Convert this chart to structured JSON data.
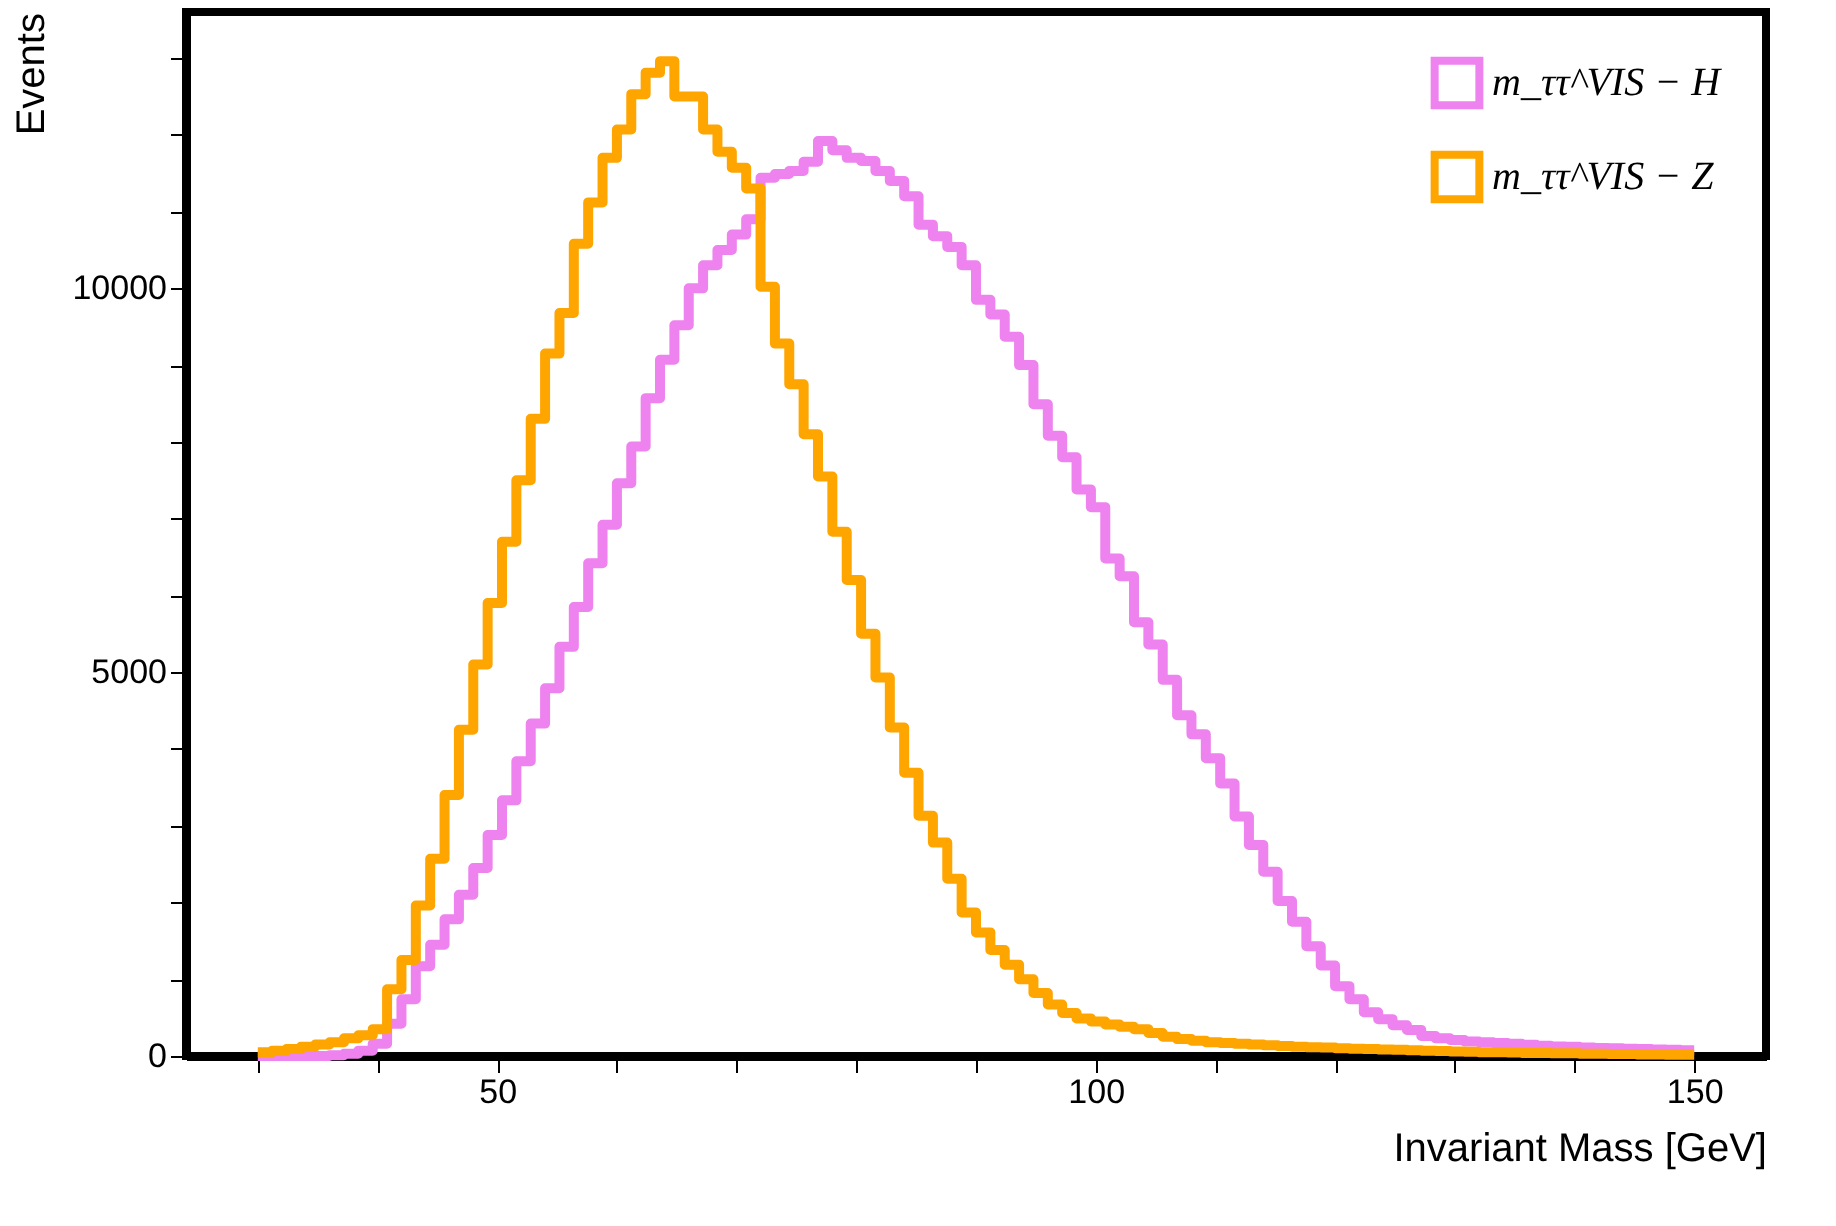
{
  "chart_data": {
    "type": "histogram",
    "xlabel": "Invariant Mass [GeV]",
    "ylabel": "Events",
    "bins": [
      30,
      31.2,
      32.4,
      33.6,
      34.8,
      36,
      37.2,
      38.4,
      39.6,
      40.8,
      42,
      43.2,
      44.4,
      45.6,
      46.8,
      48,
      49.2,
      50.4,
      51.6,
      52.8,
      54,
      55.2,
      56.4,
      57.6,
      58.8,
      60,
      61.2,
      62.4,
      63.6,
      64.8,
      66,
      67.2,
      68.4,
      69.6,
      70.8,
      72,
      73.2,
      74.4,
      75.6,
      76.8,
      78,
      79.2,
      80.4,
      81.6,
      82.8,
      84,
      85.2,
      86.4,
      87.6,
      88.8,
      90,
      91.2,
      92.4,
      93.6,
      94.8,
      96,
      97.2,
      98.4,
      99.6,
      100.8,
      102,
      103.2,
      104.4,
      105.6,
      106.8,
      108,
      109.2,
      110.4,
      111.6,
      112.8,
      114,
      115.2,
      116.4,
      117.6,
      118.8,
      120,
      121.2,
      122.4,
      123.6,
      124.8,
      126,
      127.2,
      128.4,
      129.6,
      130.8,
      132,
      133.2,
      134.4,
      135.6,
      136.8,
      138,
      139.2,
      140.4,
      141.6,
      142.8,
      144,
      145.2,
      146.4,
      147.6,
      148.8,
      150
    ],
    "series": [
      {
        "name": "m_ττ^VIS − H",
        "color": "#ee82ee",
        "values": [
          0,
          0,
          0,
          0,
          0,
          10,
          30,
          70,
          160,
          420,
          740,
          1170,
          1450,
          1780,
          2100,
          2450,
          2880,
          3330,
          3840,
          4330,
          4790,
          5330,
          5850,
          6420,
          6920,
          7460,
          7940,
          8570,
          9070,
          9520,
          10000,
          10300,
          10500,
          10700,
          10900,
          11440,
          11490,
          11530,
          11650,
          11920,
          11800,
          11700,
          11660,
          11530,
          11400,
          11200,
          10830,
          10680,
          10540,
          10300,
          9850,
          9660,
          9370,
          9000,
          8490,
          8080,
          7800,
          7380,
          7150,
          6480,
          6250,
          5650,
          5360,
          4900,
          4440,
          4190,
          3880,
          3550,
          3120,
          2750,
          2400,
          2020,
          1750,
          1430,
          1180,
          910,
          740,
          570,
          480,
          400,
          340,
          260,
          230,
          210,
          190,
          180,
          170,
          160,
          145,
          135,
          125,
          120,
          110,
          105,
          100,
          95,
          90,
          85,
          80,
          75
        ]
      },
      {
        "name": "m_ττ^VIS − Z",
        "color": "#ffa500",
        "values": [
          50,
          70,
          90,
          120,
          150,
          180,
          230,
          270,
          350,
          870,
          1250,
          1960,
          2570,
          3400,
          4250,
          5100,
          5900,
          6700,
          7500,
          8300,
          9150,
          9680,
          10580,
          11120,
          11700,
          12070,
          12530,
          12810,
          12960,
          12500,
          12500,
          12070,
          11780,
          11570,
          11300,
          10020,
          9280,
          8750,
          8100,
          7550,
          6830,
          6200,
          5500,
          4930,
          4280,
          3690,
          3130,
          2780,
          2310,
          1870,
          1610,
          1380,
          1190,
          1000,
          820,
          670,
          560,
          490,
          450,
          410,
          380,
          350,
          300,
          250,
          220,
          200,
          180,
          170,
          160,
          150,
          140,
          130,
          120,
          115,
          110,
          100,
          95,
          90,
          85,
          80,
          75,
          70,
          65,
          60,
          55,
          50,
          50,
          45,
          40,
          40,
          35,
          35,
          30,
          30,
          25,
          25,
          20,
          20,
          15,
          15
        ]
      }
    ],
    "xlim": [
      24,
      156
    ],
    "xticks": [
      {
        "value": 30,
        "label": null
      },
      {
        "value": 40,
        "label": null
      },
      50,
      {
        "value": 60,
        "label": null
      },
      {
        "value": 70,
        "label": null
      },
      {
        "value": 80,
        "label": null
      },
      {
        "value": 90,
        "label": null
      },
      100,
      {
        "value": 110,
        "label": null
      },
      {
        "value": 120,
        "label": null
      },
      {
        "value": 130,
        "label": null
      },
      {
        "value": 140,
        "label": null
      },
      150
    ],
    "ylim": [
      0,
      13600
    ],
    "yticks": [
      0,
      {
        "value": 1000,
        "label": null
      },
      {
        "value": 2000,
        "label": null
      },
      {
        "value": 3000,
        "label": null
      },
      {
        "value": 4000,
        "label": null
      },
      5000,
      {
        "value": 6000,
        "label": null
      },
      {
        "value": 7000,
        "label": null
      },
      {
        "value": 8000,
        "label": null
      },
      {
        "value": 9000,
        "label": null
      },
      10000,
      {
        "value": 11000,
        "label": null
      },
      {
        "value": 12000,
        "label": null
      },
      {
        "value": 13000,
        "label": null
      }
    ],
    "grid": false,
    "legend": "top right"
  }
}
